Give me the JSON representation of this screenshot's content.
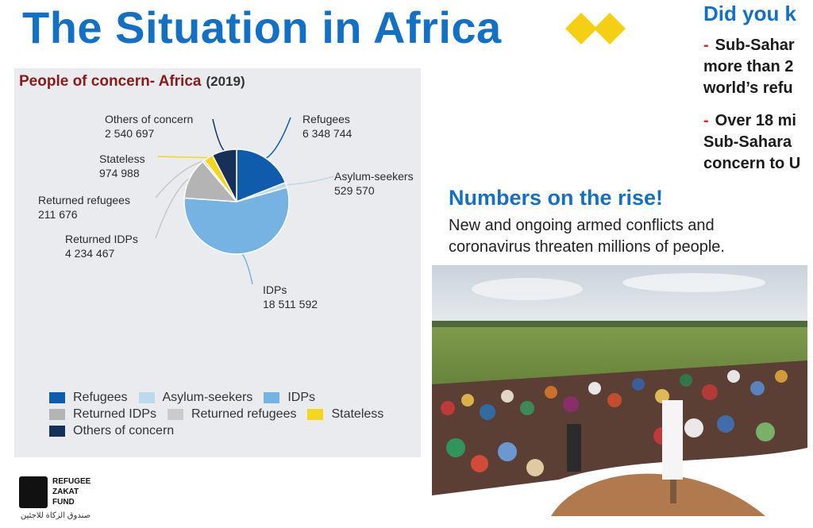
{
  "slide": {
    "title": "The Situation in Africa",
    "did_you_know": {
      "title": "Did you k",
      "items": [
        {
          "dash": "-",
          "lines": [
            "Sub-Sahar",
            "more than 2",
            "world’s refu"
          ]
        },
        {
          "dash": "-",
          "lines": [
            "Over 18 mi",
            "Sub-Sahara",
            "concern to U"
          ]
        }
      ]
    },
    "rise": {
      "title": "Numbers on the rise!",
      "lines": [
        "New and ongoing armed conflicts and",
        "coronavirus threaten millions of people."
      ]
    },
    "logo": {
      "lines": [
        "REFUGEE",
        "ZAKAT",
        "FUND"
      ],
      "arabic": "صندوق الزكاة للاجئين"
    }
  },
  "chart_data": {
    "type": "pie",
    "title": "People of concern- Africa",
    "year": "(2019)",
    "slices": [
      {
        "name": "Refugees",
        "value_label": "6 348 744",
        "value": 6348744,
        "color": "#0e5cab"
      },
      {
        "name": "Asylum-seekers",
        "value_label": "529 570",
        "value": 529570,
        "color": "#bcd9ef"
      },
      {
        "name": "IDPs",
        "value_label": "18 511 592",
        "value": 18511592,
        "color": "#77b3e2"
      },
      {
        "name": "Returned IDPs",
        "value_label": "4 234 467",
        "value": 4234467,
        "color": "#b4b4b4"
      },
      {
        "name": "Returned refugees",
        "value_label": "211 676",
        "value": 211676,
        "color": "#cbcbcb"
      },
      {
        "name": "Stateless",
        "value_label": "974 988",
        "value": 974988,
        "color": "#f4d61c"
      },
      {
        "name": "Others of concern",
        "value_label": "2 540 697",
        "value": 2540697,
        "color": "#16305a"
      }
    ],
    "legend_rows": [
      [
        "Refugees",
        "Asylum-seekers",
        "IDPs"
      ],
      [
        "Returned IDPs",
        "Returned refugees",
        "Stateless"
      ],
      [
        "Others of concern"
      ]
    ],
    "legend_placement": "bottom"
  }
}
